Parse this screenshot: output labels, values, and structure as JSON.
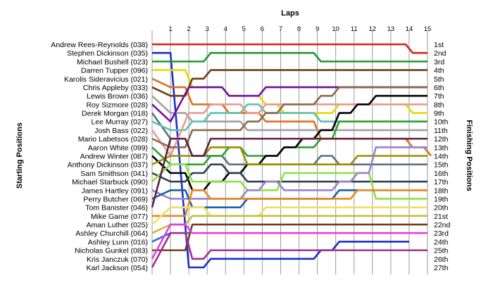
{
  "chart_data": {
    "type": "line",
    "title": "",
    "xlabel": "Laps",
    "ylabel_left": "Starting Positions",
    "ylabel_right": "Finishing Positions",
    "x": [
      0,
      1,
      2,
      3,
      4,
      5,
      6,
      7,
      8,
      9,
      10,
      11,
      12,
      13,
      14,
      15
    ],
    "lap_ticks": [
      "1",
      "2",
      "3",
      "4",
      "5",
      "6",
      "7",
      "8",
      "9",
      "10",
      "11",
      "12",
      "13",
      "14",
      "15"
    ],
    "finish_labels": [
      "1st",
      "2nd",
      "3rd",
      "4th",
      "5th",
      "6th",
      "7th",
      "8th",
      "9th",
      "10th",
      "11th",
      "12th",
      "13th",
      "14th",
      "15th",
      "16th",
      "17th",
      "18th",
      "19th",
      "20th",
      "21st",
      "22nd",
      "23rd",
      "24th",
      "25th",
      "26th",
      "27th"
    ],
    "yrange": [
      1,
      27
    ],
    "series": [
      {
        "name": "Andrew Rees-Reynolds (038)",
        "color": "#d42020",
        "positions": [
          1,
          1,
          1,
          1,
          1,
          1,
          1,
          1,
          1,
          1,
          1,
          1,
          1,
          1,
          2,
          2
        ]
      },
      {
        "name": "Stephen Dickinson (035)",
        "color": "#1a2fd0",
        "positions": [
          2,
          2,
          27,
          26,
          26,
          26,
          26,
          26,
          26,
          25,
          24,
          24,
          24,
          24,
          24,
          null
        ]
      },
      {
        "name": "Michael Bushell (023)",
        "color": "#1e9a2e",
        "positions": [
          3,
          3,
          3,
          2,
          2,
          2,
          2,
          2,
          2,
          3,
          3,
          3,
          3,
          3,
          3,
          3
        ]
      },
      {
        "name": "Darren Tupper (096)",
        "color": "#e8d800",
        "positions": [
          4,
          4,
          6,
          6,
          7,
          7,
          8,
          9,
          9,
          9,
          8,
          8,
          8,
          8,
          9,
          9
        ]
      },
      {
        "name": "Karolis Sideravicius (021)",
        "color": "#e07020",
        "positions": [
          5,
          6,
          8,
          8,
          9,
          9,
          10,
          10,
          10,
          12,
          12,
          12,
          12,
          12,
          13,
          14
        ]
      },
      {
        "name": "Chris Appleby (033)",
        "color": "#6a3f12",
        "positions": [
          6,
          7,
          5,
          4,
          4,
          4,
          4,
          4,
          4,
          4,
          4,
          4,
          4,
          4,
          4,
          4
        ]
      },
      {
        "name": "Lewis Brown (036)",
        "color": "#a0a0a0",
        "positions": [
          7,
          9,
          10,
          10,
          10,
          11,
          11,
          11,
          11,
          11,
          11,
          11,
          11,
          11,
          11,
          11
        ]
      },
      {
        "name": "Roy Sizmore (028)",
        "color": "#7010a0",
        "positions": [
          8,
          10,
          6,
          6,
          7,
          7,
          6,
          6,
          6,
          6,
          6,
          6,
          6,
          6,
          6,
          6
        ]
      },
      {
        "name": "Derek Morgan (018)",
        "color": "#5a7080",
        "positions": [
          9,
          12,
          14,
          14,
          15,
          15,
          15,
          15,
          15,
          14,
          15,
          15,
          15,
          15,
          15,
          15
        ]
      },
      {
        "name": "Lee Murray (027)",
        "color": "#60c0b0",
        "positions": [
          10,
          11,
          10,
          9,
          9,
          8,
          9,
          9,
          9,
          10,
          10,
          10,
          10,
          10,
          10,
          10
        ]
      },
      {
        "name": "Josh Bass (022)",
        "color": "#e89a90",
        "positions": [
          11,
          14,
          9,
          8,
          8,
          9,
          8,
          8,
          8,
          8,
          8,
          8,
          8,
          8,
          8,
          8
        ]
      },
      {
        "name": "Mario Labetsos (028)",
        "color": "#8a6a4a",
        "positions": [
          12,
          13,
          11,
          11,
          11,
          10,
          9,
          8,
          8,
          7,
          6,
          6,
          6,
          6,
          6,
          6
        ]
      },
      {
        "name": "Aaron White (099)",
        "color": "#30a030",
        "positions": [
          13,
          15,
          15,
          14,
          13,
          14,
          14,
          13,
          13,
          12,
          10,
          10,
          10,
          10,
          10,
          10
        ]
      },
      {
        "name": "Andrew Winter (087)",
        "color": "#000000",
        "positions": [
          14,
          16,
          18,
          17,
          16,
          15,
          14,
          13,
          12,
          11,
          9,
          8,
          7,
          7,
          7,
          7
        ]
      },
      {
        "name": "Anthony Dickinson (037)",
        "color": "#9a9000",
        "positions": [
          15,
          14,
          14,
          13,
          13,
          15,
          15,
          15,
          15,
          15,
          15,
          14,
          14,
          14,
          14,
          14
        ]
      },
      {
        "name": "Sam Smithson (041)",
        "color": "#304050",
        "positions": [
          16,
          17,
          16,
          15,
          16,
          17,
          17,
          17,
          17,
          17,
          17,
          17,
          17,
          17,
          17,
          17
        ]
      },
      {
        "name": "Michael Starbuck (090)",
        "color": "#90e040",
        "positions": [
          17,
          15,
          17,
          17,
          17,
          18,
          18,
          16,
          16,
          16,
          16,
          16,
          19,
          19,
          19,
          19
        ]
      },
      {
        "name": "James Hartley (091)",
        "color": "#9a80d0",
        "positions": [
          18,
          19,
          19,
          19,
          19,
          18,
          17,
          18,
          18,
          18,
          17,
          16,
          13,
          13,
          13,
          13
        ]
      },
      {
        "name": "Perry Butcher (069)",
        "color": "#2060a0",
        "positions": [
          19,
          18,
          20,
          20,
          20,
          19,
          19,
          19,
          19,
          19,
          18,
          18,
          18,
          18,
          18,
          18
        ]
      },
      {
        "name": "Tom Banister (046)",
        "color": "#602040",
        "positions": [
          20,
          12,
          14,
          12,
          12,
          12,
          12,
          12,
          12,
          12,
          12,
          12,
          12,
          12,
          12,
          12
        ]
      },
      {
        "name": "Mike Game (077)",
        "color": "#e88a20",
        "positions": [
          21,
          21,
          18,
          19,
          19,
          19,
          19,
          19,
          19,
          19,
          19,
          18,
          18,
          18,
          18,
          18
        ]
      },
      {
        "name": "Aman Luther (025)",
        "color": "#f0e060",
        "positions": [
          22,
          20,
          20,
          21,
          21,
          21,
          20,
          20,
          20,
          20,
          20,
          20,
          20,
          20,
          20,
          20
        ]
      },
      {
        "name": "Ashley Churchill (064)",
        "color": "#c0c040",
        "positions": [
          23,
          22,
          21,
          21,
          21,
          21,
          21,
          21,
          21,
          21,
          21,
          21,
          21,
          21,
          21,
          21
        ]
      },
      {
        "name": "Ashley Lunn (016)",
        "color": "#3070d0",
        "positions": [
          24,
          23,
          23,
          null,
          null,
          null,
          null,
          null,
          null,
          null,
          null,
          null,
          null,
          null,
          null,
          null
        ]
      },
      {
        "name": "Nicholas Gunkel (083)",
        "color": "#704020",
        "positions": [
          25,
          25,
          22,
          22,
          22,
          22,
          22,
          22,
          22,
          22,
          22,
          22,
          22,
          22,
          22,
          22
        ]
      },
      {
        "name": "Kris Janczuk (070)",
        "color": "#e040e0",
        "positions": [
          26,
          22,
          23,
          23,
          23,
          23,
          23,
          23,
          23,
          23,
          23,
          23,
          23,
          23,
          23,
          23
        ]
      },
      {
        "name": "Karl Jackson (054)",
        "color": "#a03090",
        "positions": [
          27,
          23,
          26,
          25,
          25,
          25,
          25,
          25,
          25,
          25,
          25,
          25,
          25,
          25,
          25,
          25
        ]
      }
    ]
  }
}
